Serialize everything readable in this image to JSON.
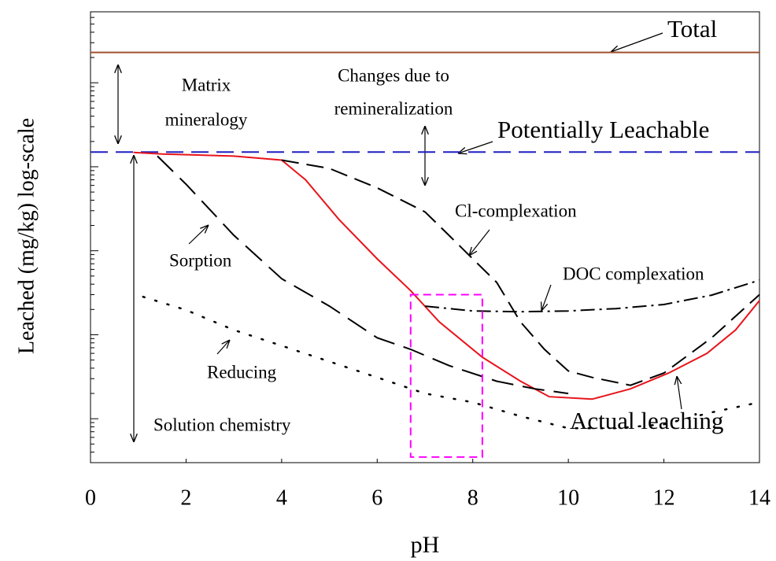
{
  "chart_data": {
    "type": "line",
    "xlabel": "pH",
    "ylabel": "Leached (mg/kg) log-scale",
    "xlim": [
      0,
      14
    ],
    "xticks": [
      0,
      2,
      4,
      6,
      8,
      10,
      12,
      14
    ],
    "ylim": [
      0.3,
      70000
    ],
    "yticks": [
      1,
      10,
      100,
      1000,
      10000
    ],
    "ylog": true,
    "series": [
      {
        "name": "Total",
        "color": "#a0522d",
        "style": "solid",
        "x": [
          0,
          14
        ],
        "values": [
          23000,
          23000
        ]
      },
      {
        "name": "Potentially Leachable",
        "color": "#1f1fbf",
        "style": "dashed",
        "x": [
          0,
          14
        ],
        "values": [
          1500,
          1500
        ]
      },
      {
        "name": "Actual leaching",
        "color": "#e8141b",
        "style": "solid",
        "x": [
          0.9,
          1.5,
          3,
          4,
          4.5,
          5.2,
          6,
          6.7,
          7.3,
          8.2,
          9,
          9.6,
          10.5,
          11.3,
          12.1,
          12.9,
          13.5,
          14
        ],
        "values": [
          1480,
          1420,
          1340,
          1200,
          700,
          236,
          80,
          33.5,
          14.2,
          5.4,
          2.8,
          1.83,
          1.71,
          2.27,
          3.5,
          6.0,
          11.4,
          25.5
        ]
      },
      {
        "name": "Sorption",
        "color": "#000000",
        "style": "longdash",
        "x": [
          1.4,
          2,
          3,
          4,
          5,
          6,
          6.7,
          7.5,
          8.5,
          9.3,
          10
        ],
        "values": [
          1340,
          620,
          153,
          46.5,
          21.9,
          9.2,
          6.7,
          4.3,
          2.8,
          2.27,
          2.0
        ]
      },
      {
        "name": "Cl-complexation",
        "color": "#000000",
        "style": "dashed",
        "x": [
          4,
          5,
          6,
          7,
          7.5,
          8,
          8.5,
          9,
          9.5,
          10,
          10.5,
          11.3,
          12,
          13,
          14
        ],
        "values": [
          1200,
          955,
          560,
          290,
          153,
          80,
          42,
          14.2,
          6.7,
          3.7,
          3.1,
          2.5,
          3.5,
          9.2,
          30
        ]
      },
      {
        "name": "DOC complexation",
        "color": "#000000",
        "style": "dashdot",
        "x": [
          7,
          8,
          9,
          10,
          11,
          12,
          13,
          14
        ],
        "values": [
          21.9,
          19.2,
          18.8,
          19.2,
          20.5,
          22.9,
          29.6,
          44.6
        ]
      },
      {
        "name": "Reducing",
        "color": "#000000",
        "style": "dotted",
        "x": [
          1.1,
          2,
          3,
          4,
          5,
          6,
          7,
          8,
          9,
          10,
          11,
          12,
          13,
          14
        ],
        "values": [
          28.3,
          19.7,
          11.4,
          7.4,
          4.8,
          3.1,
          2.0,
          1.57,
          1.07,
          0.77,
          0.77,
          0.86,
          1.19,
          1.57
        ]
      }
    ],
    "annotations": [
      {
        "lines": [
          "Matrix",
          "mineralogy"
        ]
      },
      {
        "lines": [
          "Changes due to",
          "remineralization"
        ]
      },
      {
        "lines": [
          "Solution chemistry"
        ]
      }
    ],
    "highlight_box": {
      "color": "#ff00ff",
      "x": [
        6.7,
        8.2
      ],
      "y": [
        0.35,
        30
      ]
    }
  }
}
